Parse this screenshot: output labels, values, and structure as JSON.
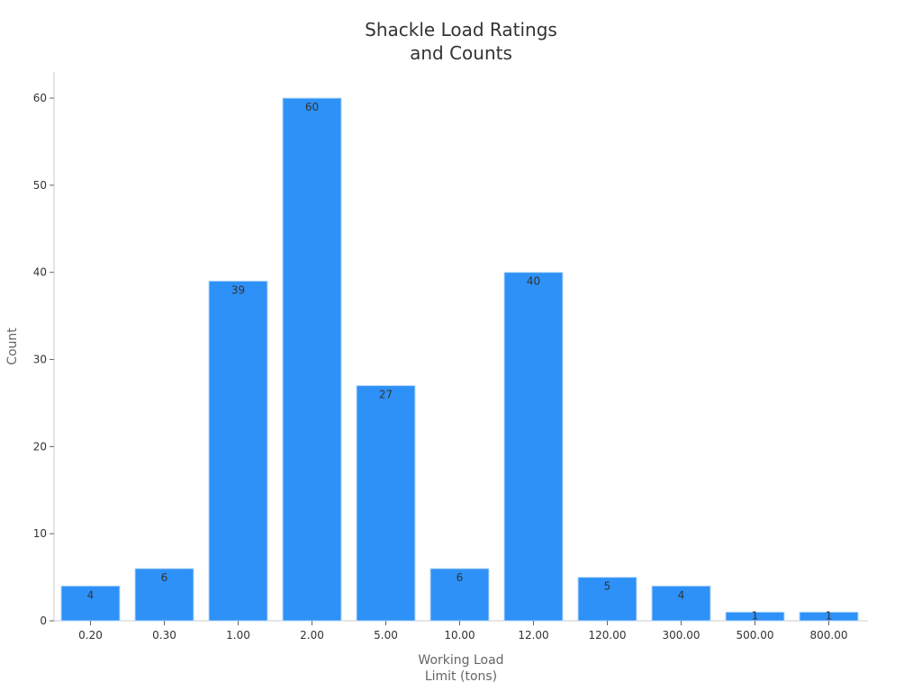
{
  "chart_data": {
    "type": "bar",
    "title_lines": [
      "Shackle Load Ratings",
      "and Counts"
    ],
    "xlabel_lines": [
      "Working Load",
      "Limit (tons)"
    ],
    "ylabel": "Count",
    "categories": [
      "0.20",
      "0.30",
      "1.00",
      "2.00",
      "5.00",
      "10.00",
      "12.00",
      "120.00",
      "300.00",
      "500.00",
      "800.00"
    ],
    "values": [
      4,
      6,
      39,
      60,
      27,
      6,
      40,
      5,
      4,
      1,
      1
    ],
    "ylim": [
      0,
      63
    ],
    "yticks": [
      0,
      10,
      20,
      30,
      40,
      50,
      60
    ],
    "grid": false,
    "legend": "none",
    "bar_color": "#2d91f7",
    "bar_edge_color": "#b9d8fb"
  }
}
